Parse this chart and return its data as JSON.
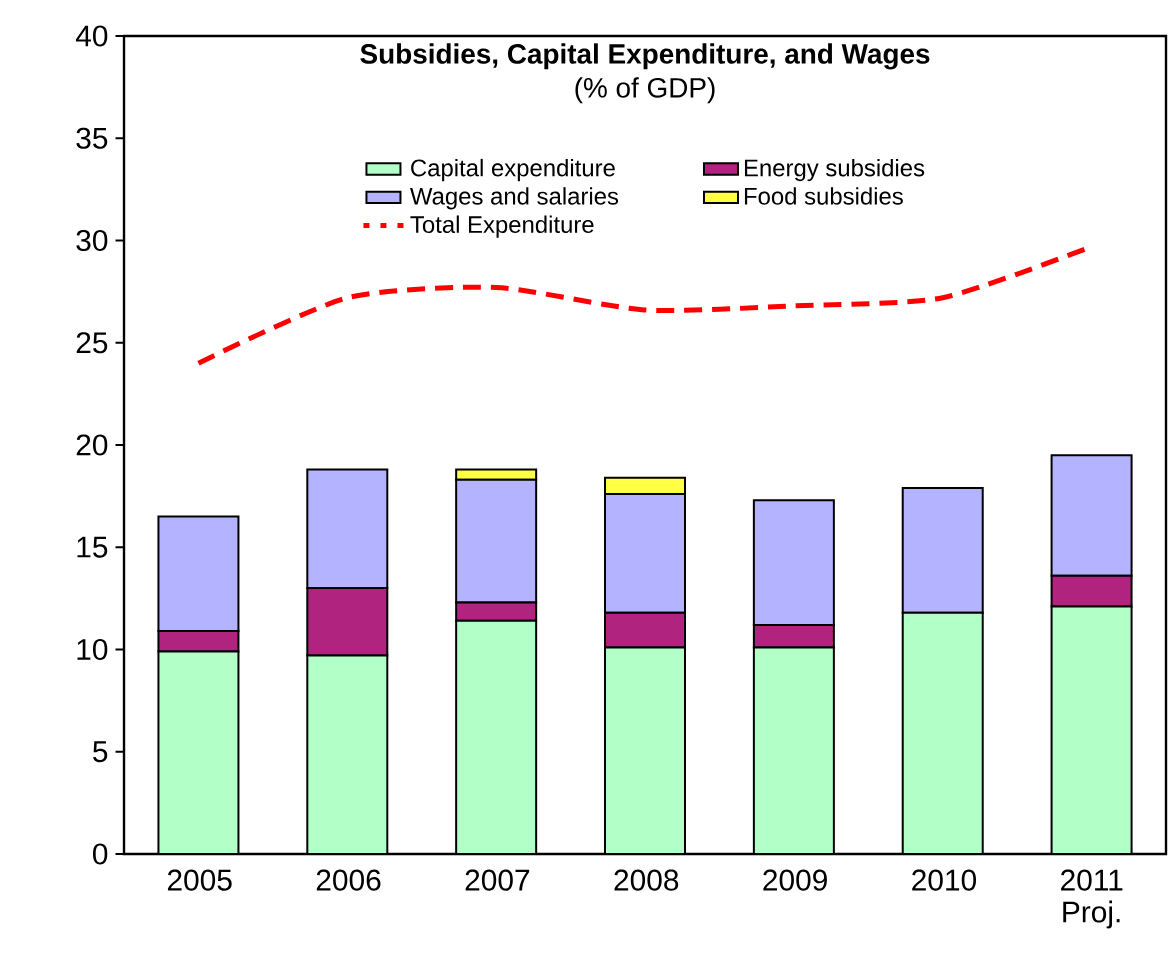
{
  "chart_data": {
    "type": "bar",
    "stacked": true,
    "title": "Subsidies, Capital Expenditure, and Wages",
    "subtitle": "(% of GDP)",
    "categories": [
      "2005",
      "2006",
      "2007",
      "2008",
      "2009",
      "2010",
      "2011 Proj."
    ],
    "ylim": [
      0,
      40
    ],
    "yticks": [
      0,
      5,
      10,
      15,
      20,
      25,
      30,
      35,
      40
    ],
    "legend": "top",
    "grid": false,
    "series": [
      {
        "name": "Capital expenditure",
        "color": "#b3ffc8",
        "values": [
          9.9,
          9.7,
          11.4,
          10.1,
          10.1,
          11.8,
          12.1
        ]
      },
      {
        "name": "Energy subsidies",
        "color": "#b0237f",
        "values": [
          1.0,
          3.3,
          0.9,
          1.7,
          1.1,
          0,
          1.5
        ]
      },
      {
        "name": "Wages and salaries",
        "color": "#b3b3ff",
        "values": [
          5.6,
          5.8,
          6.0,
          5.8,
          6.1,
          6.1,
          5.9
        ]
      },
      {
        "name": "Food subsidies",
        "color": "#ffff44",
        "values": [
          0,
          0,
          0.5,
          0.8,
          0,
          0,
          0
        ]
      },
      {
        "name": "Total Expenditure",
        "type": "line",
        "line_style": "dashed",
        "color": "#ff0000",
        "values": [
          24.0,
          27.2,
          27.7,
          26.6,
          26.8,
          27.2,
          29.7
        ]
      }
    ]
  }
}
